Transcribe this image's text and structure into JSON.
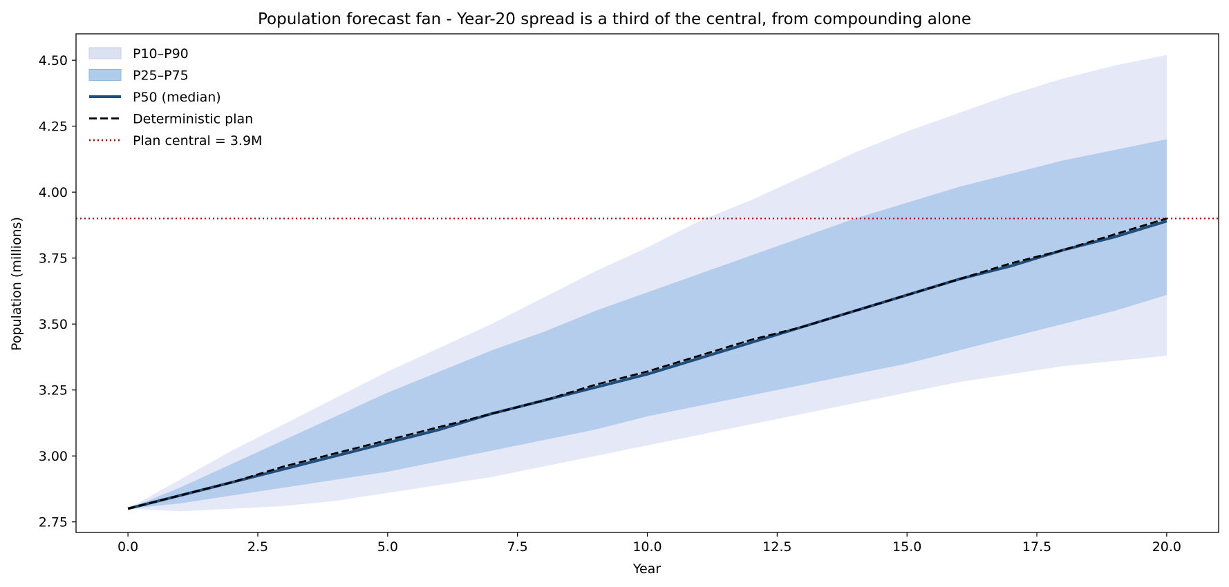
{
  "chart_data": {
    "type": "area",
    "title": "Population forecast fan - Year-20 spread is a third of the central, from compounding alone",
    "xlabel": "Year",
    "ylabel": "Population  (millions)",
    "xlim": [
      -1.0,
      21.0
    ],
    "ylim": [
      2.71,
      4.6
    ],
    "xticks": [
      0,
      2.5,
      5,
      7.5,
      10,
      12.5,
      15,
      17.5,
      20
    ],
    "xtick_labels": [
      "0.0",
      "2.5",
      "5.0",
      "7.5",
      "10.0",
      "12.5",
      "15.0",
      "17.5",
      "20.0"
    ],
    "yticks": [
      2.75,
      3.0,
      3.25,
      3.5,
      3.75,
      4.0,
      4.25,
      4.5
    ],
    "ytick_labels": [
      "2.75",
      "3.00",
      "3.25",
      "3.50",
      "3.75",
      "4.00",
      "4.25",
      "4.50"
    ],
    "grid": false,
    "legend_position": "top-left",
    "x": [
      0,
      1,
      2,
      3,
      4,
      5,
      6,
      7,
      8,
      9,
      10,
      11,
      12,
      13,
      14,
      15,
      16,
      17,
      18,
      19,
      20
    ],
    "series": [
      {
        "name": "P10–P90",
        "kind": "band",
        "color": "#c5cdea",
        "opacity": 0.45,
        "lower": [
          2.8,
          2.79,
          2.8,
          2.81,
          2.83,
          2.86,
          2.89,
          2.92,
          2.96,
          3.0,
          3.04,
          3.08,
          3.12,
          3.16,
          3.2,
          3.24,
          3.28,
          3.31,
          3.34,
          3.36,
          3.38
        ],
        "upper": [
          2.8,
          2.91,
          3.02,
          3.12,
          3.22,
          3.32,
          3.41,
          3.5,
          3.6,
          3.7,
          3.79,
          3.89,
          3.97,
          4.06,
          4.15,
          4.23,
          4.3,
          4.37,
          4.43,
          4.48,
          4.52
        ]
      },
      {
        "name": "P25–P75",
        "kind": "band",
        "color": "#8db6e3",
        "opacity": 0.55,
        "lower": [
          2.8,
          2.82,
          2.85,
          2.88,
          2.91,
          2.94,
          2.98,
          3.02,
          3.06,
          3.1,
          3.15,
          3.19,
          3.23,
          3.27,
          3.31,
          3.35,
          3.4,
          3.45,
          3.5,
          3.55,
          3.61
        ],
        "upper": [
          2.8,
          2.88,
          2.97,
          3.06,
          3.15,
          3.24,
          3.32,
          3.4,
          3.47,
          3.55,
          3.62,
          3.69,
          3.76,
          3.83,
          3.9,
          3.96,
          4.02,
          4.07,
          4.12,
          4.16,
          4.2
        ]
      },
      {
        "name": "P50 (median)",
        "kind": "line",
        "color": "#1f4e7a",
        "style": "solid",
        "values": [
          2.8,
          2.85,
          2.9,
          2.95,
          3.0,
          3.05,
          3.1,
          3.16,
          3.21,
          3.26,
          3.31,
          3.37,
          3.43,
          3.49,
          3.55,
          3.61,
          3.67,
          3.72,
          3.78,
          3.83,
          3.89
        ]
      },
      {
        "name": "Deterministic plan",
        "kind": "line",
        "color": "#000000",
        "style": "dashed",
        "values": [
          2.8,
          2.85,
          2.9,
          2.96,
          3.01,
          3.06,
          3.11,
          3.16,
          3.21,
          3.27,
          3.32,
          3.38,
          3.44,
          3.49,
          3.55,
          3.61,
          3.67,
          3.73,
          3.78,
          3.84,
          3.9
        ]
      }
    ],
    "reference_lines": [
      {
        "name": "Plan central = 3.9M",
        "orientation": "horizontal",
        "y": 3.9,
        "color": "#cc0000",
        "style": "dotted"
      }
    ]
  }
}
